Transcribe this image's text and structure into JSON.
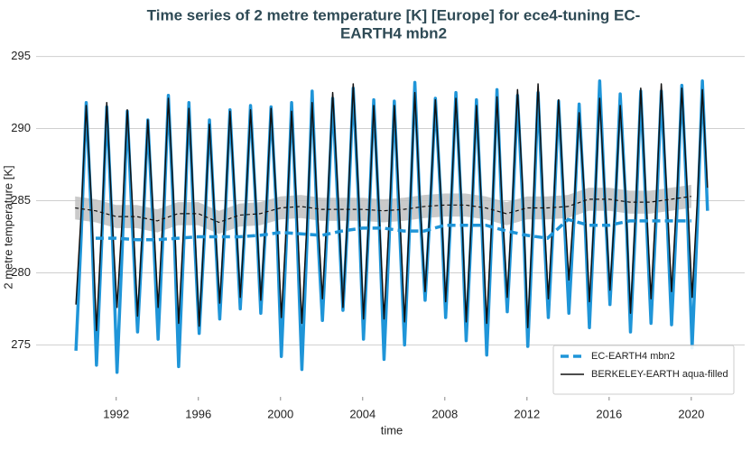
{
  "chart_data": {
    "type": "line",
    "title": [
      "Time series of 2 metre temperature [K] [Europe] for ece4-tuning EC-",
      "EARTH4 mbn2"
    ],
    "xlabel": "time",
    "ylabel": "2 metre temperature [K]",
    "xlim": [
      1988.1,
      2022.6
    ],
    "xticks": [
      1992,
      1996,
      2000,
      2004,
      2008,
      2012,
      2016,
      2020
    ],
    "ylim": [
      271.4,
      296.1
    ],
    "yticks": [
      275,
      280,
      285,
      290,
      295
    ],
    "grid": true,
    "legend": "lower right",
    "x": [
      1990.04,
      1990.29,
      1990.54,
      1990.79,
      1991.04,
      1991.29,
      1991.54,
      1991.79,
      1992.04,
      1992.29,
      1992.54,
      1992.79,
      1993.04,
      1993.29,
      1993.54,
      1993.79,
      1994.04,
      1994.29,
      1994.54,
      1994.79,
      1995.04,
      1995.29,
      1995.54,
      1995.79,
      1996.04,
      1996.29,
      1996.54,
      1996.79,
      1997.04,
      1997.29,
      1997.54,
      1997.79,
      1998.04,
      1998.29,
      1998.54,
      1998.79,
      1999.04,
      1999.29,
      1999.54,
      1999.79,
      2000.04,
      2000.29,
      2000.54,
      2000.79,
      2001.04,
      2001.29,
      2001.54,
      2001.79,
      2002.04,
      2002.29,
      2002.54,
      2002.79,
      2003.04,
      2003.29,
      2003.54,
      2003.79,
      2004.04,
      2004.29,
      2004.54,
      2004.79,
      2005.04,
      2005.29,
      2005.54,
      2005.79,
      2006.04,
      2006.29,
      2006.54,
      2006.79,
      2007.04,
      2007.29,
      2007.54,
      2007.79,
      2008.04,
      2008.29,
      2008.54,
      2008.79,
      2009.04,
      2009.29,
      2009.54,
      2009.79,
      2010.04,
      2010.29,
      2010.54,
      2010.79,
      2011.04,
      2011.29,
      2011.54,
      2011.79,
      2012.04,
      2012.29,
      2012.54,
      2012.79,
      2013.04,
      2013.29,
      2013.54,
      2013.79,
      2014.04,
      2014.29,
      2014.54,
      2014.79,
      2015.04,
      2015.29,
      2015.54,
      2015.79,
      2016.04,
      2016.29,
      2016.54,
      2016.79,
      2017.04,
      2017.29,
      2017.54,
      2017.79,
      2018.04,
      2018.29,
      2018.54,
      2018.79,
      2019.04,
      2019.29,
      2019.54,
      2019.79,
      2020.04,
      2020.29,
      2020.54,
      2020.79
    ],
    "series": [
      {
        "name": "EC-EARTH4 mbn2",
        "color": "#1f95d8",
        "width": 3.5,
        "values": [
          274.6,
          282.4,
          291.8,
          284.0,
          273.6,
          282.0,
          291.5,
          283.6,
          273.1,
          281.6,
          291.2,
          283.2,
          275.9,
          282.6,
          290.6,
          283.4,
          275.4,
          283.0,
          292.3,
          284.2,
          273.5,
          282.0,
          291.8,
          283.0,
          275.8,
          282.4,
          290.6,
          283.6,
          276.8,
          283.3,
          291.3,
          284.4,
          277.5,
          283.9,
          291.6,
          284.8,
          277.2,
          283.6,
          291.5,
          284.6,
          274.2,
          282.4,
          291.8,
          283.4,
          273.3,
          282.2,
          292.6,
          283.3,
          276.7,
          283.8,
          292.1,
          284.8,
          277.4,
          284.1,
          292.8,
          285.2,
          275.4,
          283.1,
          292.0,
          284.1,
          274.0,
          282.3,
          291.9,
          283.3,
          275.0,
          283.3,
          293.2,
          284.4,
          278.1,
          284.4,
          292.1,
          285.4,
          276.9,
          284.0,
          292.5,
          284.9,
          275.3,
          282.9,
          292.0,
          283.9,
          274.3,
          282.8,
          292.7,
          283.8,
          277.3,
          284.0,
          292.3,
          285.0,
          274.9,
          283.0,
          292.5,
          284.1,
          276.9,
          283.6,
          291.9,
          284.6,
          277.2,
          283.7,
          291.7,
          284.8,
          276.2,
          284.0,
          293.3,
          285.1,
          277.8,
          284.3,
          292.4,
          285.4,
          275.9,
          283.5,
          292.6,
          284.5,
          276.5,
          283.8,
          292.6,
          284.9,
          276.4,
          283.9,
          293.0,
          285.0,
          274.8,
          283.2,
          293.3,
          284.3
        ]
      },
      {
        "name": "BERKELEY-EARTH aqua-filled",
        "color": "#111111",
        "width": 1.5,
        "values": [
          277.8,
          284.0,
          291.6,
          285.0,
          276.0,
          283.1,
          291.8,
          284.1,
          277.6,
          283.7,
          291.3,
          284.7,
          277.0,
          283.4,
          290.6,
          284.4,
          277.6,
          284.2,
          292.1,
          285.2,
          276.5,
          283.3,
          291.4,
          284.3,
          276.3,
          283.0,
          290.3,
          284.0,
          277.9,
          284.0,
          291.2,
          285.0,
          278.3,
          284.2,
          291.3,
          285.2,
          278.1,
          284.1,
          291.4,
          285.1,
          276.9,
          283.4,
          291.2,
          284.4,
          276.5,
          283.5,
          291.8,
          284.5,
          278.2,
          284.7,
          292.5,
          285.7,
          277.6,
          284.8,
          293.1,
          285.8,
          276.8,
          283.5,
          291.6,
          284.5,
          276.8,
          283.6,
          291.6,
          284.6,
          276.6,
          284.0,
          292.5,
          285.0,
          278.7,
          284.8,
          292.0,
          285.8,
          278.0,
          284.4,
          292.1,
          285.4,
          276.6,
          283.5,
          291.6,
          284.5,
          276.5,
          283.7,
          292.2,
          284.7,
          278.3,
          284.9,
          292.7,
          285.9,
          276.2,
          284.1,
          293.1,
          285.1,
          278.2,
          284.5,
          292.0,
          285.5,
          279.5,
          284.6,
          291.1,
          285.6,
          278.0,
          284.4,
          292.1,
          285.4,
          278.8,
          284.6,
          291.6,
          285.6,
          277.2,
          284.4,
          292.8,
          285.4,
          278.2,
          285.0,
          293.1,
          286.0,
          278.7,
          285.1,
          292.8,
          286.1,
          278.3,
          284.9,
          292.7,
          285.9
        ]
      }
    ],
    "running_means": [
      {
        "color": "#1f95d8",
        "width": 3.5,
        "dash": "9 5",
        "x": [
          1991,
          1992,
          1993,
          1994,
          1995,
          1996,
          1997,
          1998,
          1999,
          2000,
          2001,
          2002,
          2003,
          2004,
          2005,
          2006,
          2007,
          2008,
          2009,
          2010,
          2011,
          2012,
          2013,
          2014,
          2015,
          2016,
          2017,
          2018,
          2019,
          2020
        ],
        "values": [
          282.4,
          282.4,
          282.3,
          282.3,
          282.4,
          282.5,
          282.5,
          282.5,
          282.6,
          282.8,
          282.7,
          282.6,
          282.9,
          283.1,
          283.1,
          282.9,
          282.9,
          283.3,
          283.3,
          283.3,
          282.9,
          282.6,
          282.4,
          283.7,
          283.3,
          283.3,
          283.6,
          283.6,
          283.6,
          283.6
        ]
      },
      {
        "color": "#111111",
        "width": 1.2,
        "dash": "4 3",
        "x": [
          1990,
          1991,
          1992,
          1993,
          1994,
          1995,
          1996,
          1997,
          1998,
          1999,
          2000,
          2001,
          2002,
          2003,
          2004,
          2005,
          2006,
          2007,
          2008,
          2009,
          2010,
          2011,
          2012,
          2013,
          2014,
          2015,
          2016,
          2017,
          2018,
          2019,
          2020
        ],
        "values": [
          284.5,
          284.3,
          283.9,
          283.9,
          283.6,
          284.1,
          284.1,
          283.5,
          284.0,
          284.1,
          284.5,
          284.6,
          284.4,
          284.4,
          284.4,
          284.3,
          284.4,
          284.6,
          284.7,
          284.7,
          284.5,
          284.1,
          284.5,
          284.5,
          284.6,
          285.1,
          285.1,
          284.9,
          284.9,
          285.1,
          285.3
        ]
      }
    ],
    "band": {
      "color": "#bdbdbd",
      "x": [
        1990,
        1991,
        1992,
        1993,
        1994,
        1995,
        1996,
        1997,
        1998,
        1999,
        2000,
        2001,
        2002,
        2003,
        2004,
        2005,
        2006,
        2007,
        2008,
        2009,
        2010,
        2011,
        2012,
        2013,
        2014,
        2015,
        2016,
        2017,
        2018,
        2019,
        2020
      ],
      "lower": [
        283.7,
        283.5,
        283.1,
        283.1,
        282.8,
        283.3,
        283.3,
        282.7,
        283.2,
        283.3,
        283.7,
        283.8,
        283.6,
        283.6,
        283.6,
        283.5,
        283.6,
        283.8,
        283.9,
        283.9,
        283.7,
        283.3,
        283.7,
        283.7,
        283.8,
        284.3,
        284.3,
        284.1,
        284.1,
        284.3,
        284.5
      ],
      "upper": [
        285.3,
        285.1,
        284.7,
        284.7,
        284.4,
        284.9,
        284.9,
        284.3,
        284.8,
        284.9,
        285.3,
        285.4,
        285.2,
        285.2,
        285.2,
        285.1,
        285.2,
        285.4,
        285.5,
        285.5,
        285.3,
        284.9,
        285.3,
        285.3,
        285.4,
        285.9,
        285.9,
        285.7,
        285.7,
        285.9,
        286.1
      ]
    }
  }
}
